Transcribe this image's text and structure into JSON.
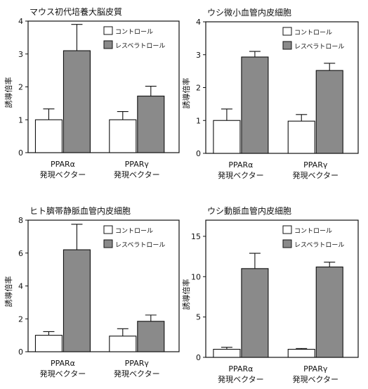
{
  "chart_data": [
    {
      "type": "bar",
      "title": "マウス初代培養大脳皮質",
      "ylabel": "誘導倍率",
      "ylim": [
        0,
        4
      ],
      "yticks": [
        0,
        1,
        2,
        3,
        4
      ],
      "categories": [
        [
          "PPARα",
          "発現ベクター"
        ],
        [
          "PPARγ",
          "発現ベクター"
        ]
      ],
      "series": [
        {
          "name": "コントロール",
          "color": "#ffffff",
          "values": [
            1.0,
            1.0
          ],
          "errors": [
            0.33,
            0.25
          ]
        },
        {
          "name": "レスベラトロール",
          "color": "#8a8a8a",
          "values": [
            3.1,
            1.72
          ],
          "errors": [
            0.8,
            0.3
          ]
        }
      ],
      "legend": "top-right"
    },
    {
      "type": "bar",
      "title": "ウシ微小血管内皮細胞",
      "ylabel": "誘導倍率",
      "ylim": [
        0,
        4
      ],
      "yticks": [
        0,
        1,
        2,
        3,
        4
      ],
      "categories": [
        [
          "PPARα",
          "発現ベクター"
        ],
        [
          "PPARγ",
          "発現ベクター"
        ]
      ],
      "series": [
        {
          "name": "コントロール",
          "color": "#ffffff",
          "values": [
            1.0,
            0.98
          ],
          "errors": [
            0.35,
            0.2
          ]
        },
        {
          "name": "レスベラトロール",
          "color": "#8a8a8a",
          "values": [
            2.93,
            2.52
          ],
          "errors": [
            0.17,
            0.22
          ]
        }
      ],
      "legend": "top-right"
    },
    {
      "type": "bar",
      "title": "ヒト臍帯静脈血管内皮細胞",
      "ylabel": "誘導倍率",
      "ylim": [
        0,
        8
      ],
      "yticks": [
        0,
        2,
        4,
        6,
        8
      ],
      "categories": [
        [
          "PPARα",
          "発現ベクター"
        ],
        [
          "PPARγ",
          "発現ベクター"
        ]
      ],
      "series": [
        {
          "name": "コントロール",
          "color": "#ffffff",
          "values": [
            1.0,
            0.95
          ],
          "errors": [
            0.22,
            0.45
          ]
        },
        {
          "name": "レスベラトロール",
          "color": "#8a8a8a",
          "values": [
            6.2,
            1.85
          ],
          "errors": [
            1.55,
            0.38
          ]
        }
      ],
      "legend": "top-right"
    },
    {
      "type": "bar",
      "title": "ウシ動脈血管内皮細胞",
      "ylabel": "誘導倍率",
      "ylim": [
        0,
        17
      ],
      "yticks": [
        0,
        5,
        10,
        15
      ],
      "categories": [
        [
          "PPARα",
          "発現ベクター"
        ],
        [
          "PPARγ",
          "発現ベクター"
        ]
      ],
      "series": [
        {
          "name": "コントロール",
          "color": "#ffffff",
          "values": [
            1.0,
            1.0
          ],
          "errors": [
            0.25,
            0.1
          ]
        },
        {
          "name": "レスベラトロール",
          "color": "#8a8a8a",
          "values": [
            11.0,
            11.2
          ],
          "errors": [
            1.9,
            0.6
          ]
        }
      ],
      "legend": "top-right"
    }
  ]
}
